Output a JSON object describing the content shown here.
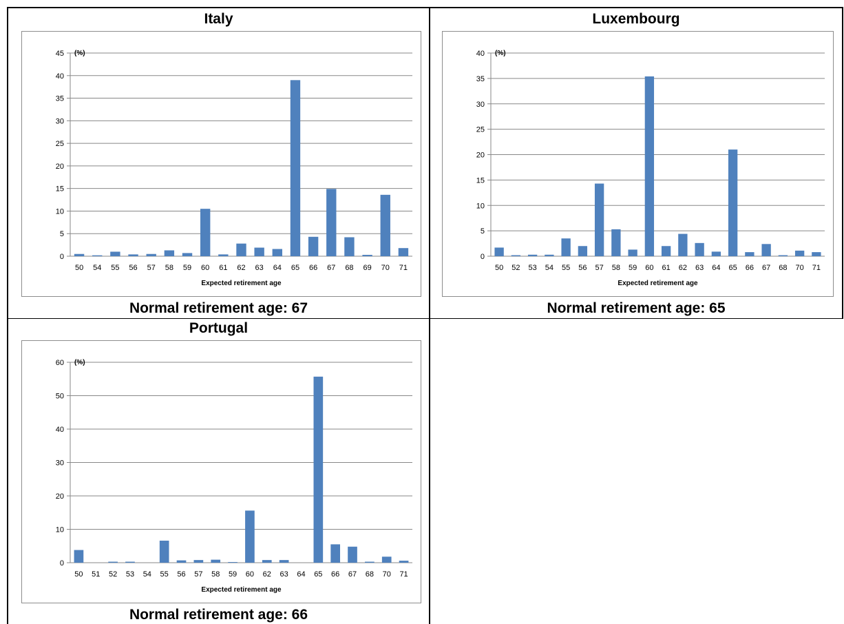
{
  "panels": [
    {
      "title": "Italy",
      "footer": "Normal retirement age: 67",
      "chart_data": {
        "type": "bar",
        "unit_label": "(%)",
        "xlabel": "Expected retirement age",
        "ylabel": "",
        "ylim": [
          0,
          45
        ],
        "yticks": [
          0,
          5,
          10,
          15,
          20,
          25,
          30,
          35,
          40,
          45
        ],
        "grid": true,
        "color": "#4f81bd",
        "categories": [
          "50",
          "54",
          "55",
          "56",
          "57",
          "58",
          "59",
          "60",
          "61",
          "62",
          "63",
          "64",
          "65",
          "66",
          "67",
          "68",
          "69",
          "70",
          "71"
        ],
        "values": [
          0.5,
          0.2,
          1.0,
          0.4,
          0.5,
          1.3,
          0.7,
          10.5,
          0.4,
          2.8,
          1.9,
          1.6,
          39.0,
          4.3,
          14.9,
          4.2,
          0.3,
          13.6,
          1.8
        ]
      }
    },
    {
      "title": "Luxembourg",
      "footer": "Normal retirement age: 65",
      "chart_data": {
        "type": "bar",
        "unit_label": "(%)",
        "xlabel": "Expected retirement age",
        "ylabel": "",
        "ylim": [
          0,
          40
        ],
        "yticks": [
          0,
          5,
          10,
          15,
          20,
          25,
          30,
          35,
          40
        ],
        "grid": true,
        "color": "#4f81bd",
        "categories": [
          "50",
          "52",
          "53",
          "54",
          "55",
          "56",
          "57",
          "58",
          "59",
          "60",
          "61",
          "62",
          "63",
          "64",
          "65",
          "66",
          "67",
          "68",
          "70",
          "71"
        ],
        "values": [
          1.7,
          0.2,
          0.3,
          0.3,
          3.5,
          2.0,
          14.3,
          5.3,
          1.3,
          35.4,
          2.0,
          4.4,
          2.6,
          0.9,
          21.0,
          0.8,
          2.4,
          0.2,
          1.1,
          0.8
        ]
      }
    },
    {
      "title": "Portugal",
      "footer": "Normal retirement age: 66",
      "chart_data": {
        "type": "bar",
        "unit_label": "(%)",
        "xlabel": "Expected retirement age",
        "ylabel": "",
        "ylim": [
          0,
          60
        ],
        "yticks": [
          0,
          10,
          20,
          30,
          40,
          50,
          60
        ],
        "grid": true,
        "color": "#4f81bd",
        "categories": [
          "50",
          "51",
          "52",
          "53",
          "54",
          "55",
          "56",
          "57",
          "58",
          "59",
          "60",
          "62",
          "63",
          "64",
          "65",
          "66",
          "67",
          "68",
          "70",
          "71"
        ],
        "values": [
          3.8,
          0,
          0.3,
          0.3,
          0,
          6.6,
          0.7,
          0.8,
          0.9,
          0.2,
          15.6,
          0.8,
          0.8,
          0,
          55.7,
          5.5,
          4.8,
          0.3,
          1.8,
          0.6
        ]
      }
    }
  ]
}
